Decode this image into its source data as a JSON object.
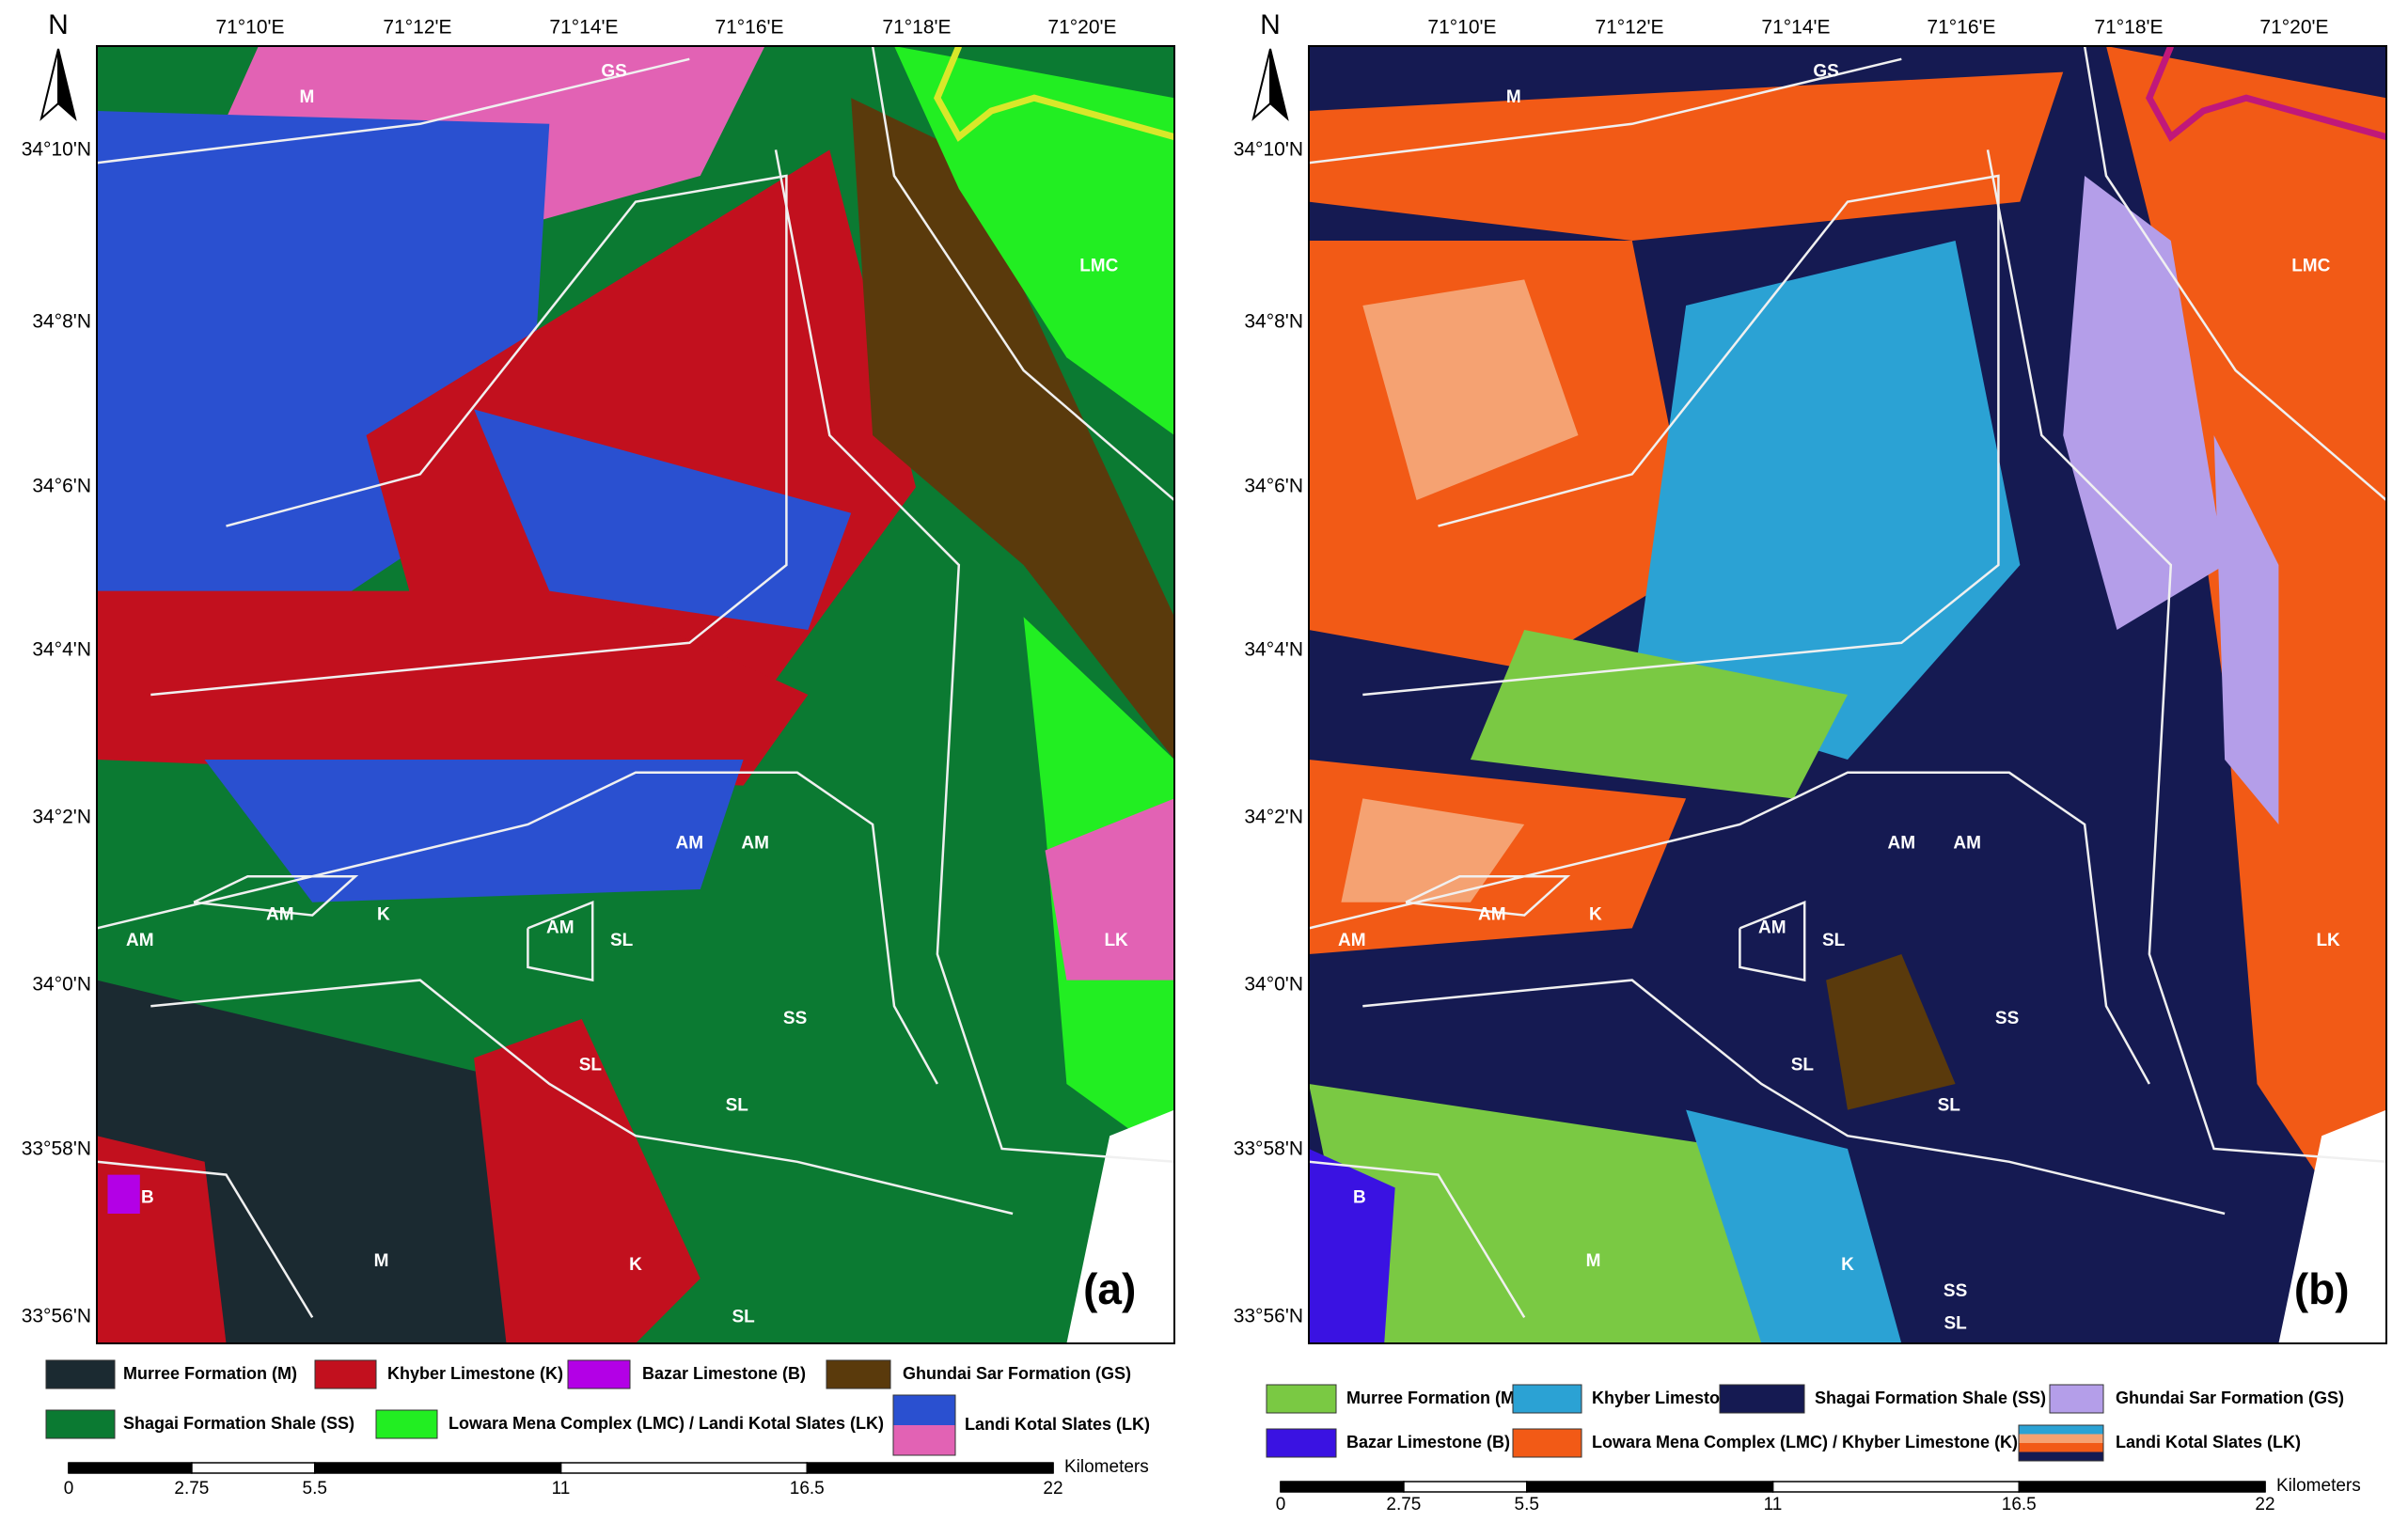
{
  "panels": [
    {
      "label": "(a)",
      "north": "N",
      "lon_labels": [
        "71°10'E",
        "71°12'E",
        "71°14'E",
        "71°16'E",
        "71°18'E",
        "71°20'E"
      ],
      "lat_labels": [
        "34°10'N",
        "34°8'N",
        "34°6'N",
        "34°4'N",
        "34°2'N",
        "34°0'N",
        "33°58'N",
        "33°56'N"
      ],
      "map_labels": [
        "GS",
        "M",
        "LMC",
        "AM",
        "K",
        "AM",
        "AM",
        "AM",
        "SL",
        "AM",
        "LK",
        "SS",
        "SL",
        "SL",
        "B",
        "M",
        "K",
        "SL"
      ],
      "legend": [
        {
          "label": "Murree Formation (M)",
          "colors": [
            "#1b2a31"
          ]
        },
        {
          "label": "Khyber Limestone (K)",
          "colors": [
            "#c2101e"
          ]
        },
        {
          "label": "Bazar Limestone (B)",
          "colors": [
            "#b300e6"
          ]
        },
        {
          "label": "Ghundai Sar Formation (GS)",
          "colors": [
            "#5a3a0c"
          ]
        },
        {
          "label": "Shagai Formation Shale (SS)",
          "colors": [
            "#0b7a32"
          ]
        },
        {
          "label": "Lowara Mena Complex (LMC) / Landi Kotal Slates (LK)",
          "colors": [
            "#22ee22"
          ]
        },
        {
          "label": "Landi Kotal Slates (LK)",
          "colors": [
            "#2a50d0",
            "#e262b4"
          ]
        }
      ],
      "scale": {
        "ticks": [
          0,
          2.75,
          5.5,
          11,
          16.5,
          22
        ],
        "unit": "Kilometers"
      }
    },
    {
      "label": "(b)",
      "north": "N",
      "lon_labels": [
        "71°10'E",
        "71°12'E",
        "71°14'E",
        "71°16'E",
        "71°18'E",
        "71°20'E"
      ],
      "lat_labels": [
        "34°10'N",
        "34°8'N",
        "34°6'N",
        "34°4'N",
        "34°2'N",
        "34°0'N",
        "33°58'N",
        "33°56'N"
      ],
      "map_labels": [
        "GS",
        "M",
        "LMC",
        "AM",
        "K",
        "AM",
        "AM",
        "AM",
        "SL",
        "AM",
        "LK",
        "SS",
        "SL",
        "SL",
        "B",
        "M",
        "K",
        "SS",
        "SL"
      ],
      "legend": [
        {
          "label": "Murree Formation (M)",
          "colors": [
            "#7ac943"
          ]
        },
        {
          "label": "Khyber Limestone (K)",
          "colors": [
            "#2ba2d4"
          ]
        },
        {
          "label": "Shagai Formation Shale (SS)",
          "colors": [
            "#151a52"
          ]
        },
        {
          "label": "Ghundai Sar Formation (GS)",
          "colors": [
            "#b49ee9"
          ]
        },
        {
          "label": "Bazar Limestone (B)",
          "colors": [
            "#3a12e2"
          ]
        },
        {
          "label": "Lowara Mena Complex (LMC) / Khyber Limestone (K)",
          "colors": [
            "#f25a16"
          ]
        },
        {
          "label": "Landi Kotal Slates (LK)",
          "colors": [
            "#2ba2d4",
            "#f5a272",
            "#f25a16",
            "#151a52"
          ]
        }
      ],
      "scale": {
        "ticks": [
          0,
          2.75,
          5.5,
          11,
          16.5,
          22
        ],
        "unit": "Kilometers"
      }
    }
  ]
}
